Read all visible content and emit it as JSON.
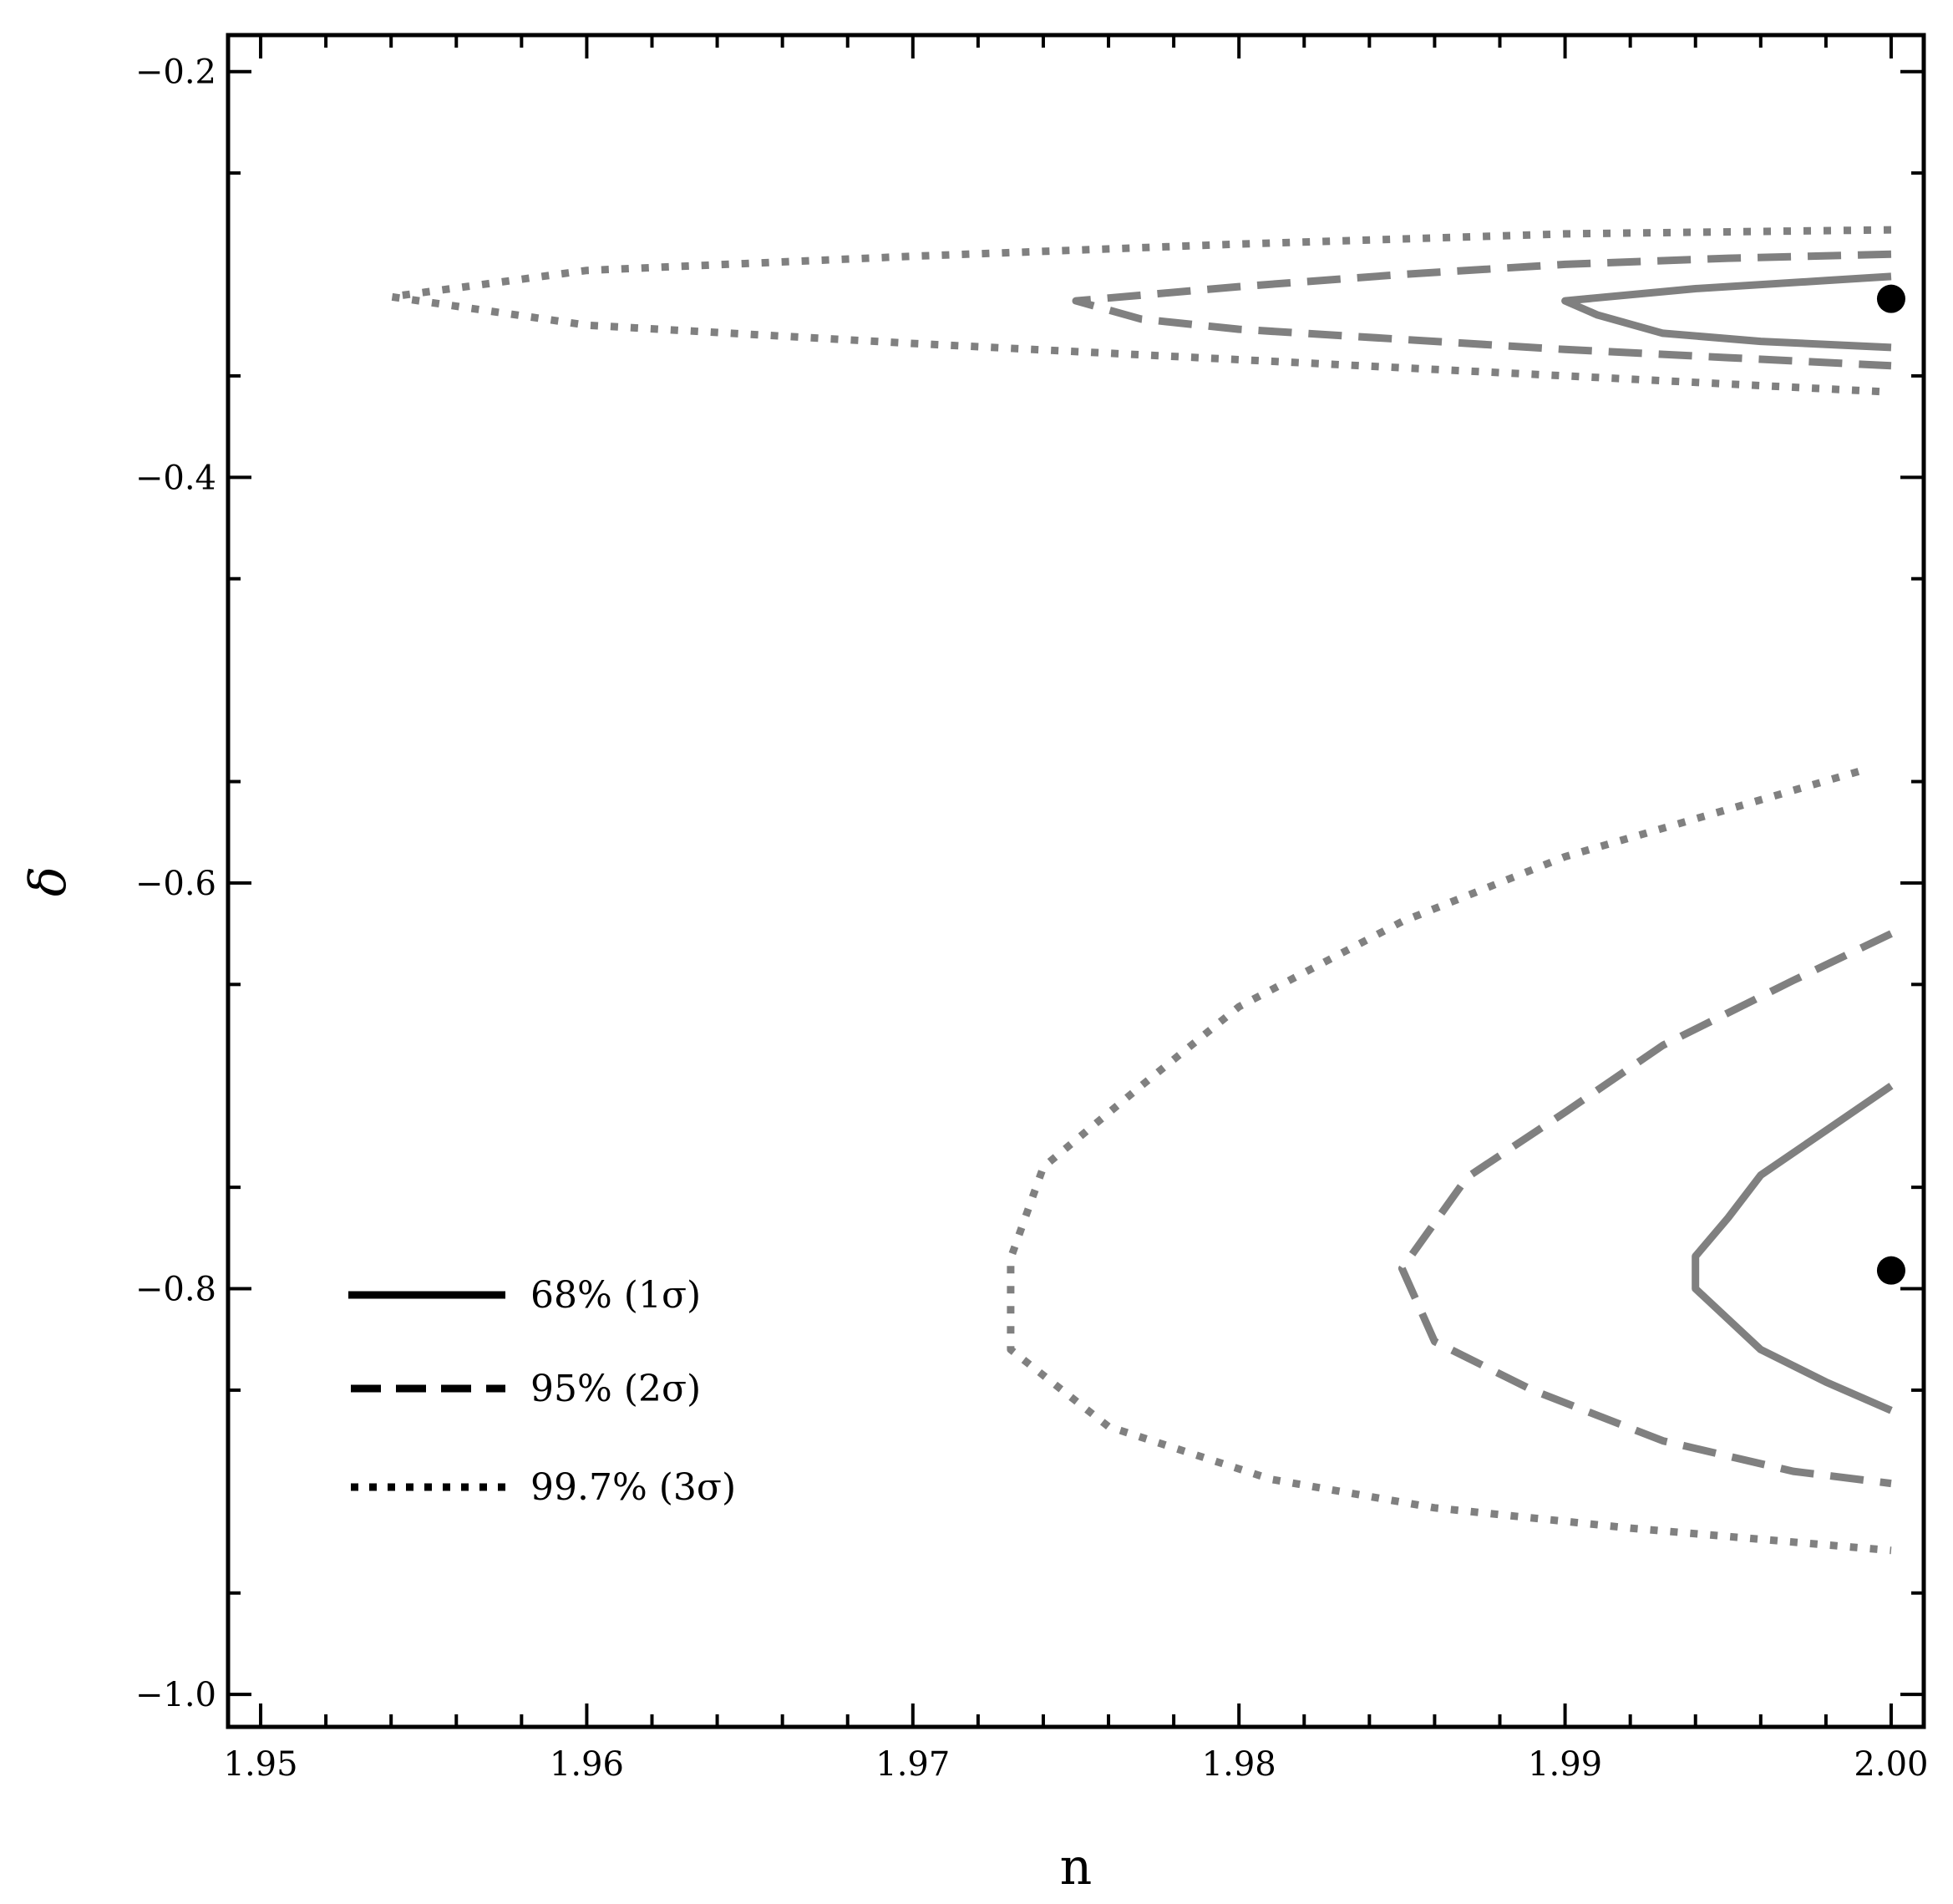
{
  "chart_data": {
    "type": "contour",
    "xlabel": "n",
    "ylabel": "δ",
    "xlim": [
      1.949,
      2.001
    ],
    "ylim": [
      -1.016,
      -0.182
    ],
    "xticks": [
      1.95,
      1.96,
      1.97,
      1.98,
      1.99,
      2.0
    ],
    "xtick_labels": [
      "1.95",
      "1.96",
      "1.97",
      "1.98",
      "1.99",
      "2.00"
    ],
    "yticks": [
      -0.2,
      -0.4,
      -0.6,
      -0.8,
      -1.0
    ],
    "ytick_labels": [
      "−0.2",
      "−0.4",
      "−0.6",
      "−0.8",
      "−1.0"
    ],
    "grid": false,
    "legend_position": "bottom-left",
    "contour_color": "#808080",
    "best_fit_color": "#000000",
    "best_fit_points": [
      {
        "x": 2.0,
        "y": -0.312
      },
      {
        "x": 2.0,
        "y": -0.791
      }
    ],
    "series": [
      {
        "name": "68% (1σ)",
        "style": "solid",
        "regions": [
          [
            [
              2.0,
              -0.301
            ],
            [
              1.998,
              -0.303
            ],
            [
              1.994,
              -0.307
            ],
            [
              1.99,
              -0.313
            ],
            [
              1.991,
              -0.32
            ],
            [
              1.993,
              -0.329
            ],
            [
              1.996,
              -0.333
            ],
            [
              2.0,
              -0.336
            ]
          ],
          [
            [
              2.0,
              -0.7
            ],
            [
              1.998,
              -0.722
            ],
            [
              1.996,
              -0.744
            ],
            [
              1.995,
              -0.765
            ],
            [
              1.994,
              -0.784
            ],
            [
              1.994,
              -0.8
            ],
            [
              1.995,
              -0.815
            ],
            [
              1.996,
              -0.83
            ],
            [
              1.998,
              -0.846
            ],
            [
              2.0,
              -0.86
            ]
          ]
        ]
      },
      {
        "name": "95% (2σ)",
        "style": "dashed",
        "regions": [
          [
            [
              2.0,
              -0.29
            ],
            [
              1.995,
              -0.292
            ],
            [
              1.99,
              -0.295
            ],
            [
              1.985,
              -0.3
            ],
            [
              1.98,
              -0.306
            ],
            [
              1.975,
              -0.313
            ],
            [
              1.977,
              -0.322
            ],
            [
              1.98,
              -0.327
            ],
            [
              1.985,
              -0.332
            ],
            [
              1.99,
              -0.337
            ],
            [
              1.995,
              -0.341
            ],
            [
              2.0,
              -0.345
            ]
          ],
          [
            [
              2.0,
              -0.625
            ],
            [
              1.997,
              -0.648
            ],
            [
              1.993,
              -0.68
            ],
            [
              1.99,
              -0.713
            ],
            [
              1.987,
              -0.745
            ],
            [
              1.985,
              -0.79
            ],
            [
              1.986,
              -0.826
            ],
            [
              1.989,
              -0.85
            ],
            [
              1.993,
              -0.875
            ],
            [
              1.997,
              -0.89
            ],
            [
              2.0,
              -0.896
            ]
          ]
        ]
      },
      {
        "name": "99.7% (3σ)",
        "style": "dotted",
        "regions": [
          [
            [
              2.0,
              -0.278
            ],
            [
              1.99,
              -0.28
            ],
            [
              1.98,
              -0.285
            ],
            [
              1.97,
              -0.291
            ],
            [
              1.96,
              -0.298
            ],
            [
              1.954,
              -0.311
            ],
            [
              1.96,
              -0.325
            ],
            [
              1.97,
              -0.334
            ],
            [
              1.98,
              -0.342
            ],
            [
              1.99,
              -0.35
            ],
            [
              2.0,
              -0.358
            ]
          ],
          [
            [
              1.999,
              -0.545
            ],
            [
              1.99,
              -0.587
            ],
            [
              1.985,
              -0.619
            ],
            [
              1.98,
              -0.661
            ],
            [
              1.977,
              -0.7
            ],
            [
              1.974,
              -0.74
            ],
            [
              1.973,
              -0.785
            ],
            [
              1.973,
              -0.83
            ],
            [
              1.976,
              -0.868
            ],
            [
              1.981,
              -0.894
            ],
            [
              1.986,
              -0.908
            ],
            [
              1.992,
              -0.918
            ],
            [
              2.0,
              -0.929
            ]
          ]
        ]
      }
    ]
  }
}
